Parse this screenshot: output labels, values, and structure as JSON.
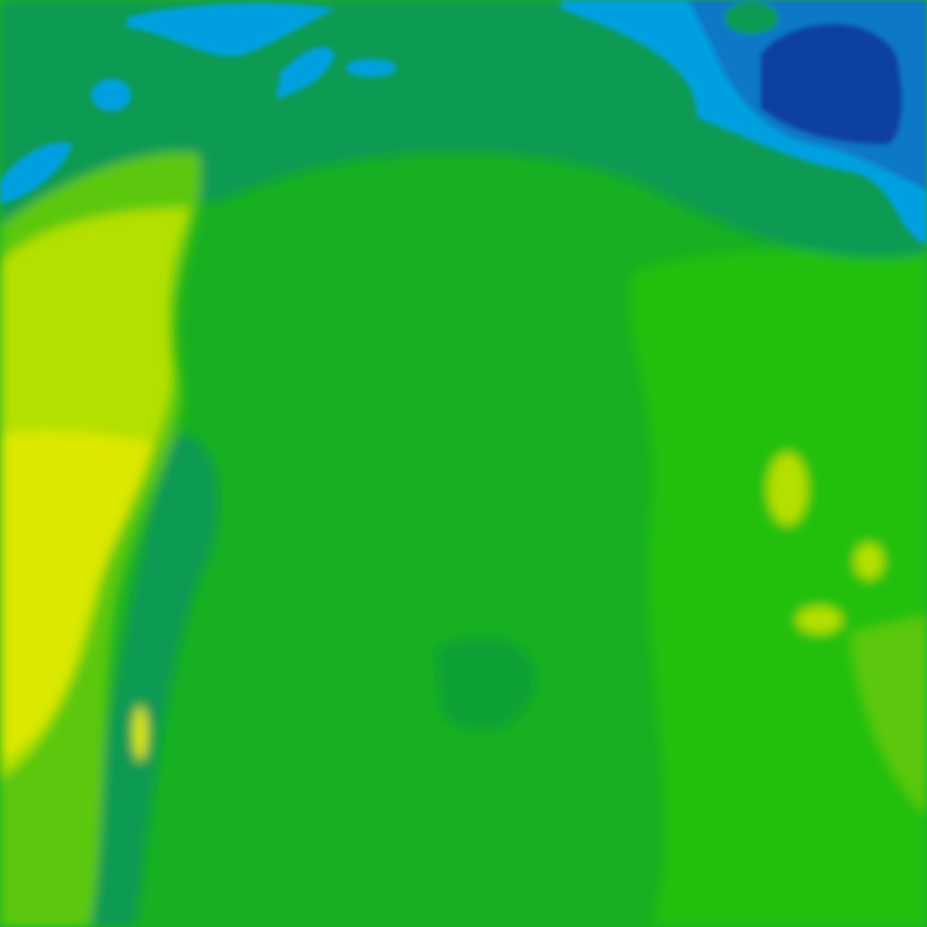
{
  "map": {
    "type": "filled-contour-field",
    "palette": {
      "base_green": "#18b022",
      "bright_green": "#24c00a",
      "deep_green": "#10a034",
      "teal_green": "#0c9a52",
      "light_green": "#5cc80a",
      "yellow_green": "#b4e000",
      "yellow": "#dce800",
      "cyan_blue": "#00a0e0",
      "mid_blue": "#0a78c8",
      "dark_blue": "#1040a0"
    }
  }
}
